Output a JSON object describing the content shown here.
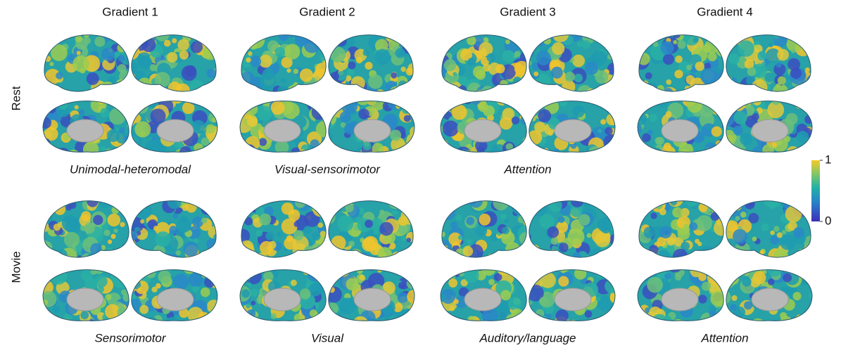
{
  "columns": [
    "Gradient 1",
    "Gradient 2",
    "Gradient 3",
    "Gradient 4"
  ],
  "rows": [
    {
      "label": "Rest",
      "captions": [
        "Unimodal-heteromodal",
        "Visual-sensorimotor",
        "Attention"
      ]
    },
    {
      "label": "Movie",
      "captions": [
        "Sensorimotor",
        "Visual",
        "Auditory/language",
        "Attention"
      ]
    }
  ],
  "colorbar": {
    "ticks": [
      0,
      1
    ]
  }
}
